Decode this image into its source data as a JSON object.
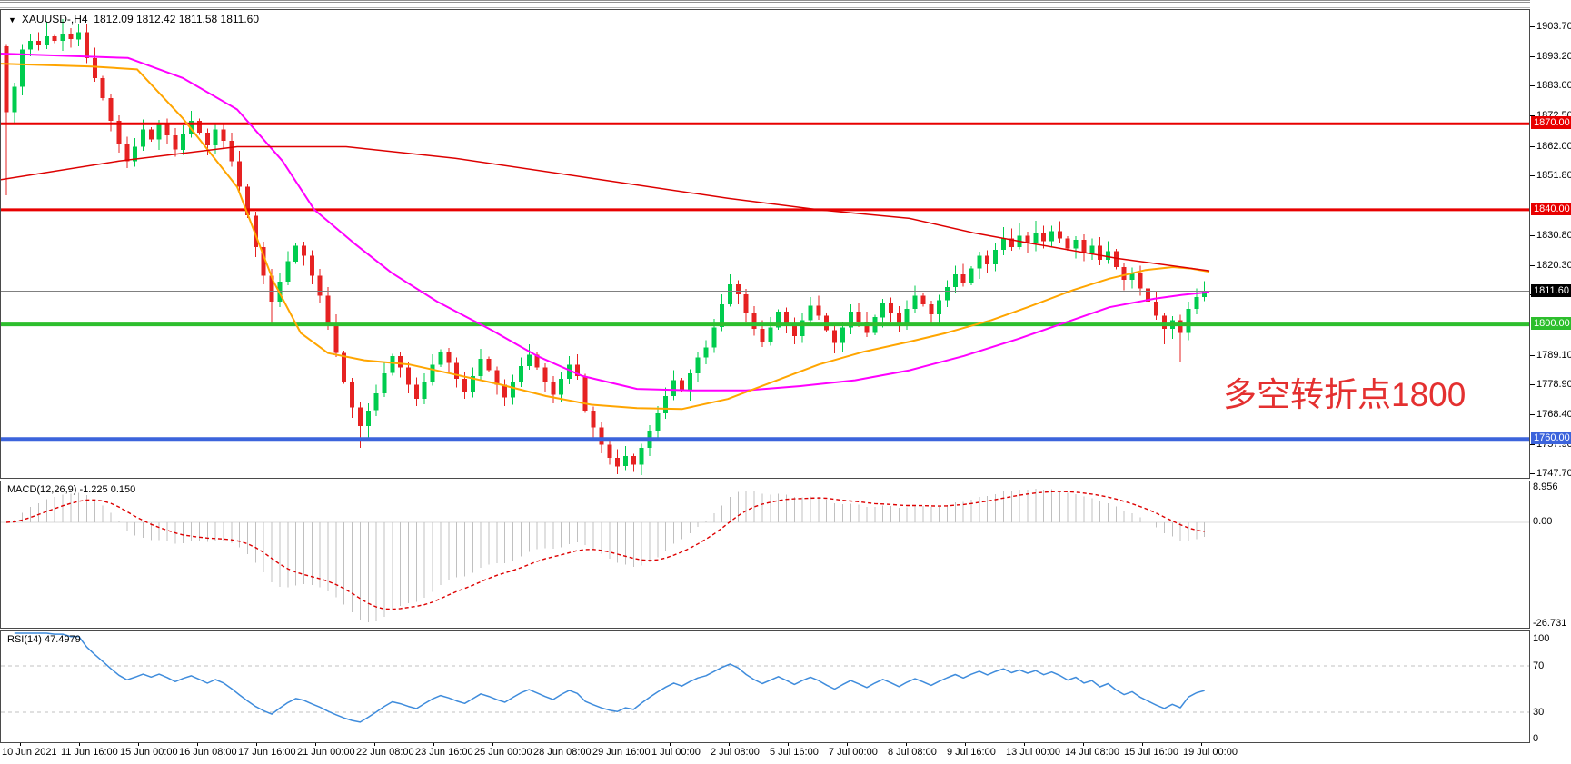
{
  "window": {
    "dropdown_glyph": "▼",
    "symbol_label": "XAUUSD-,H4",
    "quote_string": "1812.09 1812.42 1811.58 1811.60"
  },
  "annotation": {
    "text": "多空转折点1800",
    "color": "#e43030"
  },
  "price_axis": {
    "ticks": [
      "1903.70",
      "1893.20",
      "1883.00",
      "1872.50",
      "1862.00",
      "1851.80",
      "1830.80",
      "1820.30",
      "1810.10",
      "1789.10",
      "1778.90",
      "1768.40",
      "1757.90",
      "1747.70"
    ],
    "tick_values": [
      1903.7,
      1893.2,
      1883.0,
      1872.5,
      1862.0,
      1851.8,
      1830.8,
      1820.3,
      1810.1,
      1789.1,
      1778.9,
      1768.4,
      1757.9,
      1747.7
    ],
    "badges": [
      {
        "label": "1870.00",
        "price": 1870.0,
        "bg": "#e80000",
        "fg": "#ffffff"
      },
      {
        "label": "1840.00",
        "price": 1840.0,
        "bg": "#e80000",
        "fg": "#ffffff"
      },
      {
        "label": "1811.60",
        "price": 1811.6,
        "bg": "#000000",
        "fg": "#ffffff"
      },
      {
        "label": "1800.00",
        "price": 1800.0,
        "bg": "#2dbe2d",
        "fg": "#ffffff"
      },
      {
        "label": "1760.00",
        "price": 1760.0,
        "bg": "#3c64dc",
        "fg": "#ffffff"
      }
    ]
  },
  "indicators": {
    "macd": {
      "label": "MACD(12,26,9) -1.225 0.150",
      "params": [
        12,
        26,
        9
      ],
      "current_macd": -1.225,
      "current_signal": 0.15,
      "axis_ticks": [
        "8.956",
        "0.00",
        "-26.731"
      ],
      "range": {
        "max": 8.956,
        "min": -26.731
      }
    },
    "rsi": {
      "label": "RSI(14) 47.4979",
      "period": 14,
      "current": 47.4979,
      "axis_ticks": [
        "100",
        "70",
        "30",
        "0"
      ],
      "levels": [
        70,
        30
      ]
    }
  },
  "time_axis": {
    "labels": [
      "10 Jun 2021",
      "11 Jun 16:00",
      "15 Jun 00:00",
      "16 Jun 08:00",
      "17 Jun 16:00",
      "21 Jun 00:00",
      "22 Jun 08:00",
      "23 Jun 16:00",
      "25 Jun 00:00",
      "28 Jun 08:00",
      "29 Jun 16:00",
      "1 Jul 00:00",
      "2 Jul 08:00",
      "5 Jul 16:00",
      "7 Jul 00:00",
      "8 Jul 08:00",
      "9 Jul 16:00",
      "13 Jul 00:00",
      "14 Jul 08:00",
      "15 Jul 16:00",
      "19 Jul 00:00"
    ]
  },
  "colors": {
    "candle_up": "#00cc4e",
    "candle_down": "#e62222",
    "ma_orange": "#ffa500",
    "ma_magenta": "#ff00ff",
    "ma_red": "#dd0000",
    "macd_hist": "#c0c0c0",
    "macd_signal": "#dd0000",
    "macd_zero": "#d8d8d8",
    "rsi_line": "#3f8cdc",
    "rsi_levels": "#c0c0c0",
    "hline_red": "#e80000",
    "hline_green": "#2dbe2d",
    "hline_blue": "#3c64dc",
    "bid_line": "#808080"
  },
  "chart_data": {
    "type": "candlestick",
    "symbol": "XAUUSD-",
    "timeframe": "H4",
    "price_axis_range": [
      1745.9,
      1909.7
    ],
    "last_price": 1811.6,
    "horizontal_lines": [
      {
        "price": 1870.0,
        "color": "#e80000",
        "thickness": 3
      },
      {
        "price": 1840.0,
        "color": "#e80000",
        "thickness": 3
      },
      {
        "price": 1800.0,
        "color": "#2dbe2d",
        "thickness": 4
      },
      {
        "price": 1760.0,
        "color": "#3c64dc",
        "thickness": 4
      }
    ],
    "bid_line": {
      "price": 1811.6,
      "color": "#808080",
      "thickness": 1
    },
    "candles": {
      "first_open": 1897,
      "closes": [
        1874,
        1883,
        1896,
        1899,
        1897.5,
        1900.5,
        1899,
        1901.5,
        1899.5,
        1902,
        1893,
        1886,
        1879,
        1871,
        1863,
        1857,
        1862,
        1868,
        1864.5,
        1870,
        1866,
        1861,
        1866.5,
        1871,
        1867,
        1862.5,
        1868,
        1864,
        1857,
        1848,
        1838,
        1827,
        1817,
        1808,
        1815,
        1822,
        1827.5,
        1824,
        1817,
        1810,
        1800,
        1790,
        1780,
        1771,
        1764.5,
        1770,
        1776,
        1783,
        1789,
        1785,
        1779,
        1774,
        1780,
        1786,
        1790.5,
        1786.5,
        1781,
        1776.5,
        1782,
        1788,
        1784,
        1779,
        1774.5,
        1780,
        1785.5,
        1789.5,
        1785,
        1780,
        1775.5,
        1781,
        1786,
        1782,
        1770,
        1764,
        1758,
        1753.5,
        1750.5,
        1754,
        1751,
        1757,
        1763,
        1769,
        1775,
        1780.5,
        1777,
        1783,
        1788.5,
        1792,
        1799,
        1807,
        1814,
        1810.5,
        1804,
        1798.5,
        1794,
        1799,
        1804.5,
        1800.5,
        1796,
        1801.5,
        1806.5,
        1803,
        1798,
        1793.5,
        1799,
        1804.5,
        1801,
        1797,
        1802.5,
        1807.5,
        1804,
        1800,
        1805.5,
        1810,
        1807,
        1803.5,
        1808.5,
        1813,
        1817.5,
        1814.5,
        1819.5,
        1824,
        1821,
        1826,
        1830,
        1827,
        1831,
        1828.5,
        1832,
        1829,
        1832.5,
        1830,
        1826.5,
        1829.5,
        1825,
        1827.5,
        1822.5,
        1825.5,
        1820,
        1815.5,
        1818,
        1812.5,
        1808,
        1803,
        1798.5,
        1801.5,
        1797,
        1805.5,
        1809.5,
        1811.6
      ],
      "wick_overrides": {
        "0": {
          "low": 1845
        },
        "5": {
          "high": 1905.5
        },
        "7": {
          "high": 1906.5
        },
        "9": {
          "high": 1905
        },
        "33": {
          "low": 1800.5
        },
        "44": {
          "low": 1757
        },
        "45": {
          "low": 1759.5
        },
        "76": {
          "low": 1747.8
        },
        "78": {
          "low": 1748.5
        },
        "90": {
          "high": 1817.5
        },
        "124": {
          "high": 1834
        },
        "126": {
          "high": 1835.2
        },
        "128": {
          "high": 1836.2
        },
        "130": {
          "high": 1834.5
        },
        "144": {
          "low": 1793
        },
        "146": {
          "low": 1787
        }
      }
    },
    "moving_averages": [
      {
        "name": "ma-magenta",
        "color": "#ff00ff",
        "width": 2,
        "points": [
          [
            0,
            1894.5
          ],
          [
            140,
            1893
          ],
          [
            200,
            1886
          ],
          [
            260,
            1875
          ],
          [
            310,
            1857
          ],
          [
            345,
            1840
          ],
          [
            390,
            1828
          ],
          [
            430,
            1818
          ],
          [
            480,
            1808
          ],
          [
            540,
            1798
          ],
          [
            590,
            1789
          ],
          [
            640,
            1782
          ],
          [
            700,
            1777.5
          ],
          [
            760,
            1777
          ],
          [
            820,
            1777
          ],
          [
            880,
            1778.5
          ],
          [
            940,
            1780.5
          ],
          [
            1000,
            1784
          ],
          [
            1060,
            1789
          ],
          [
            1120,
            1795
          ],
          [
            1170,
            1800.5
          ],
          [
            1220,
            1806
          ],
          [
            1270,
            1809
          ],
          [
            1300,
            1810.3
          ],
          [
            1330,
            1811.3
          ]
        ]
      },
      {
        "name": "ma-orange",
        "color": "#ffa500",
        "width": 2,
        "points": [
          [
            0,
            1891
          ],
          [
            100,
            1890
          ],
          [
            150,
            1889
          ],
          [
            200,
            1872
          ],
          [
            260,
            1848
          ],
          [
            300,
            1815
          ],
          [
            330,
            1797
          ],
          [
            360,
            1790
          ],
          [
            400,
            1787.5
          ],
          [
            450,
            1786
          ],
          [
            500,
            1782.5
          ],
          [
            550,
            1779
          ],
          [
            600,
            1775
          ],
          [
            650,
            1772
          ],
          [
            700,
            1770.8
          ],
          [
            750,
            1770.5
          ],
          [
            800,
            1774
          ],
          [
            850,
            1780
          ],
          [
            900,
            1786
          ],
          [
            950,
            1790.5
          ],
          [
            1000,
            1794
          ],
          [
            1040,
            1797
          ],
          [
            1090,
            1801.5
          ],
          [
            1130,
            1806
          ],
          [
            1180,
            1812
          ],
          [
            1220,
            1816
          ],
          [
            1260,
            1819
          ],
          [
            1290,
            1820
          ],
          [
            1310,
            1819.5
          ],
          [
            1330,
            1818.4
          ]
        ]
      },
      {
        "name": "ma-red",
        "color": "#dd0000",
        "width": 1.5,
        "points": [
          [
            0,
            1850.5
          ],
          [
            130,
            1857
          ],
          [
            260,
            1862
          ],
          [
            380,
            1862
          ],
          [
            500,
            1858
          ],
          [
            650,
            1851
          ],
          [
            800,
            1844
          ],
          [
            900,
            1840
          ],
          [
            1000,
            1837
          ],
          [
            1070,
            1832
          ],
          [
            1130,
            1828.5
          ],
          [
            1230,
            1823
          ],
          [
            1330,
            1818.7
          ]
        ]
      }
    ]
  }
}
